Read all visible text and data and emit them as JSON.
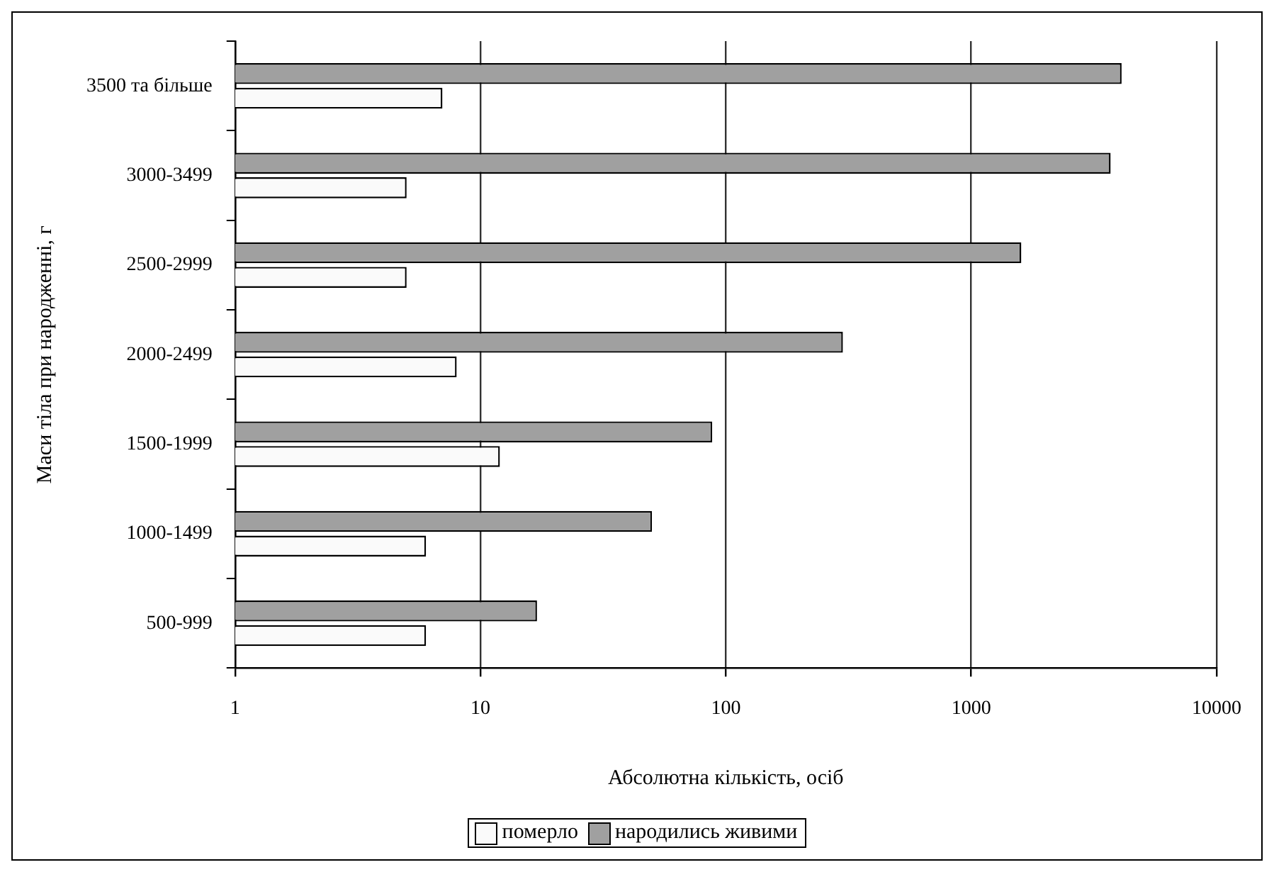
{
  "chart_data": {
    "type": "bar",
    "orientation": "horizontal",
    "xlabel": "Абсолютна кількість, осіб",
    "ylabel": "Маси тіла при народженні, г",
    "categories": [
      "3500 та більше",
      "3000-3499",
      "2500-2999",
      "2000-2499",
      "1500-1999",
      "1000-1499",
      "500-999"
    ],
    "series": [
      {
        "name": "померло",
        "color": "#fafafa",
        "values": [
          7,
          5,
          5,
          8,
          12,
          6,
          6
        ]
      },
      {
        "name": "народились живими",
        "color": "#a0a0a0",
        "values": [
          4100,
          3700,
          1600,
          300,
          88,
          50,
          17
        ]
      }
    ],
    "log": "x",
    "xlim": [
      1,
      10000
    ],
    "xticks": [
      1,
      10,
      100,
      1000,
      10000
    ],
    "grid": "x",
    "legend": "bottom"
  }
}
